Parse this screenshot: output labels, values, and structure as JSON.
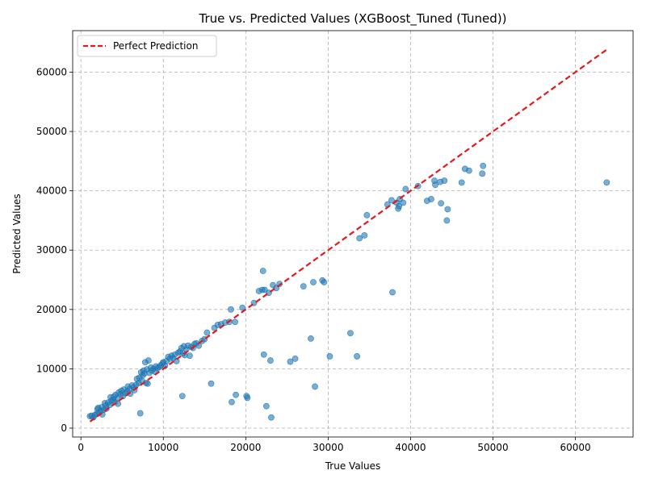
{
  "chart_data": {
    "type": "scatter",
    "title": "True vs. Predicted Values (XGBoost_Tuned (Tuned))",
    "xlabel": "True Values",
    "ylabel": "Predicted Values",
    "xlim": [
      -1000,
      67000
    ],
    "ylim": [
      -1500,
      67000
    ],
    "xticks": [
      0,
      10000,
      20000,
      30000,
      40000,
      50000,
      60000
    ],
    "yticks": [
      0,
      10000,
      20000,
      30000,
      40000,
      50000,
      60000
    ],
    "grid": true,
    "legend": {
      "location": "top-left",
      "entries": [
        "Perfect Prediction"
      ]
    },
    "colors": {
      "points": "#1f77b4",
      "perfect_line": "#e31a1c"
    },
    "perfect_line": {
      "x": [
        1100,
        63800
      ],
      "y": [
        1100,
        63800
      ]
    },
    "series": [
      {
        "values": [
          [
            1100,
            2000
          ],
          [
            1300,
            2100
          ],
          [
            1500,
            1800
          ],
          [
            1700,
            2200
          ],
          [
            1900,
            2400
          ],
          [
            2000,
            3200
          ],
          [
            2100,
            3400
          ],
          [
            2200,
            2600
          ],
          [
            2400,
            2900
          ],
          [
            2500,
            3500
          ],
          [
            2600,
            2300
          ],
          [
            2800,
            3100
          ],
          [
            2900,
            4200
          ],
          [
            3000,
            3800
          ],
          [
            3100,
            3300
          ],
          [
            3300,
            4300
          ],
          [
            3500,
            3900
          ],
          [
            3600,
            5200
          ],
          [
            3700,
            4600
          ],
          [
            3900,
            4800
          ],
          [
            4000,
            5300
          ],
          [
            4100,
            4400
          ],
          [
            4200,
            5600
          ],
          [
            4400,
            5000
          ],
          [
            4500,
            4100
          ],
          [
            4600,
            6000
          ],
          [
            4800,
            5700
          ],
          [
            4900,
            6300
          ],
          [
            5100,
            5400
          ],
          [
            5200,
            6500
          ],
          [
            5400,
            5900
          ],
          [
            5600,
            6200
          ],
          [
            5700,
            7000
          ],
          [
            5900,
            6600
          ],
          [
            6000,
            5800
          ],
          [
            6200,
            7200
          ],
          [
            6400,
            6900
          ],
          [
            6500,
            6400
          ],
          [
            6700,
            7300
          ],
          [
            6800,
            8300
          ],
          [
            7000,
            7600
          ],
          [
            7100,
            8500
          ],
          [
            7200,
            2500
          ],
          [
            7300,
            9400
          ],
          [
            7400,
            8000
          ],
          [
            7500,
            8900
          ],
          [
            7600,
            9700
          ],
          [
            7700,
            9200
          ],
          [
            7800,
            11100
          ],
          [
            7900,
            7600
          ],
          [
            8000,
            9900
          ],
          [
            8100,
            7500
          ],
          [
            8200,
            11400
          ],
          [
            8300,
            9300
          ],
          [
            8500,
            10200
          ],
          [
            8600,
            9700
          ],
          [
            8800,
            10000
          ],
          [
            9000,
            9500
          ],
          [
            9100,
            10400
          ],
          [
            9300,
            10100
          ],
          [
            9500,
            10300
          ],
          [
            9700,
            10600
          ],
          [
            9900,
            10900
          ],
          [
            10000,
            11100
          ],
          [
            10200,
            10500
          ],
          [
            10400,
            11300
          ],
          [
            10600,
            12000
          ],
          [
            10800,
            11700
          ],
          [
            11000,
            12200
          ],
          [
            11200,
            11800
          ],
          [
            11400,
            12400
          ],
          [
            11600,
            11300
          ],
          [
            11800,
            12700
          ],
          [
            12000,
            12900
          ],
          [
            12200,
            13500
          ],
          [
            12300,
            5400
          ],
          [
            12400,
            12600
          ],
          [
            12500,
            13800
          ],
          [
            12600,
            12300
          ],
          [
            12800,
            13300
          ],
          [
            13000,
            13900
          ],
          [
            13200,
            12200
          ],
          [
            13400,
            13700
          ],
          [
            13600,
            13500
          ],
          [
            13800,
            14200
          ],
          [
            14000,
            14300
          ],
          [
            14300,
            13900
          ],
          [
            14700,
            14700
          ],
          [
            15000,
            15000
          ],
          [
            15300,
            16100
          ],
          [
            15800,
            7500
          ],
          [
            16200,
            16900
          ],
          [
            16600,
            17400
          ],
          [
            17000,
            17500
          ],
          [
            17500,
            17800
          ],
          [
            18000,
            17900
          ],
          [
            18200,
            20000
          ],
          [
            18300,
            4400
          ],
          [
            18700,
            17900
          ],
          [
            18800,
            5600
          ],
          [
            19600,
            20300
          ],
          [
            20100,
            5400
          ],
          [
            20200,
            5100
          ],
          [
            21000,
            21100
          ],
          [
            21600,
            23100
          ],
          [
            22000,
            23300
          ],
          [
            22100,
            26500
          ],
          [
            22200,
            12400
          ],
          [
            22300,
            23300
          ],
          [
            22500,
            3700
          ],
          [
            22800,
            22800
          ],
          [
            23000,
            11400
          ],
          [
            23100,
            1800
          ],
          [
            23300,
            24100
          ],
          [
            23700,
            23600
          ],
          [
            24100,
            24300
          ],
          [
            25400,
            11200
          ],
          [
            26000,
            11700
          ],
          [
            27000,
            23900
          ],
          [
            27900,
            15100
          ],
          [
            28200,
            24600
          ],
          [
            28400,
            7000
          ],
          [
            29300,
            24900
          ],
          [
            29500,
            24600
          ],
          [
            30200,
            12100
          ],
          [
            32700,
            16000
          ],
          [
            33500,
            12100
          ],
          [
            33800,
            32000
          ],
          [
            34400,
            32500
          ],
          [
            34700,
            35900
          ],
          [
            37200,
            37700
          ],
          [
            37700,
            38400
          ],
          [
            37800,
            22900
          ],
          [
            38300,
            38000
          ],
          [
            38500,
            37000
          ],
          [
            38600,
            37400
          ],
          [
            38700,
            38600
          ],
          [
            39100,
            38000
          ],
          [
            39400,
            40300
          ],
          [
            40900,
            40800
          ],
          [
            42000,
            38300
          ],
          [
            42500,
            38600
          ],
          [
            42900,
            41700
          ],
          [
            43000,
            41000
          ],
          [
            43600,
            41500
          ],
          [
            43700,
            37900
          ],
          [
            44100,
            41700
          ],
          [
            44400,
            35000
          ],
          [
            44500,
            36900
          ],
          [
            46200,
            41400
          ],
          [
            46600,
            43700
          ],
          [
            47100,
            43400
          ],
          [
            48700,
            42900
          ],
          [
            48800,
            44200
          ],
          [
            63800,
            41400
          ]
        ]
      }
    ]
  }
}
